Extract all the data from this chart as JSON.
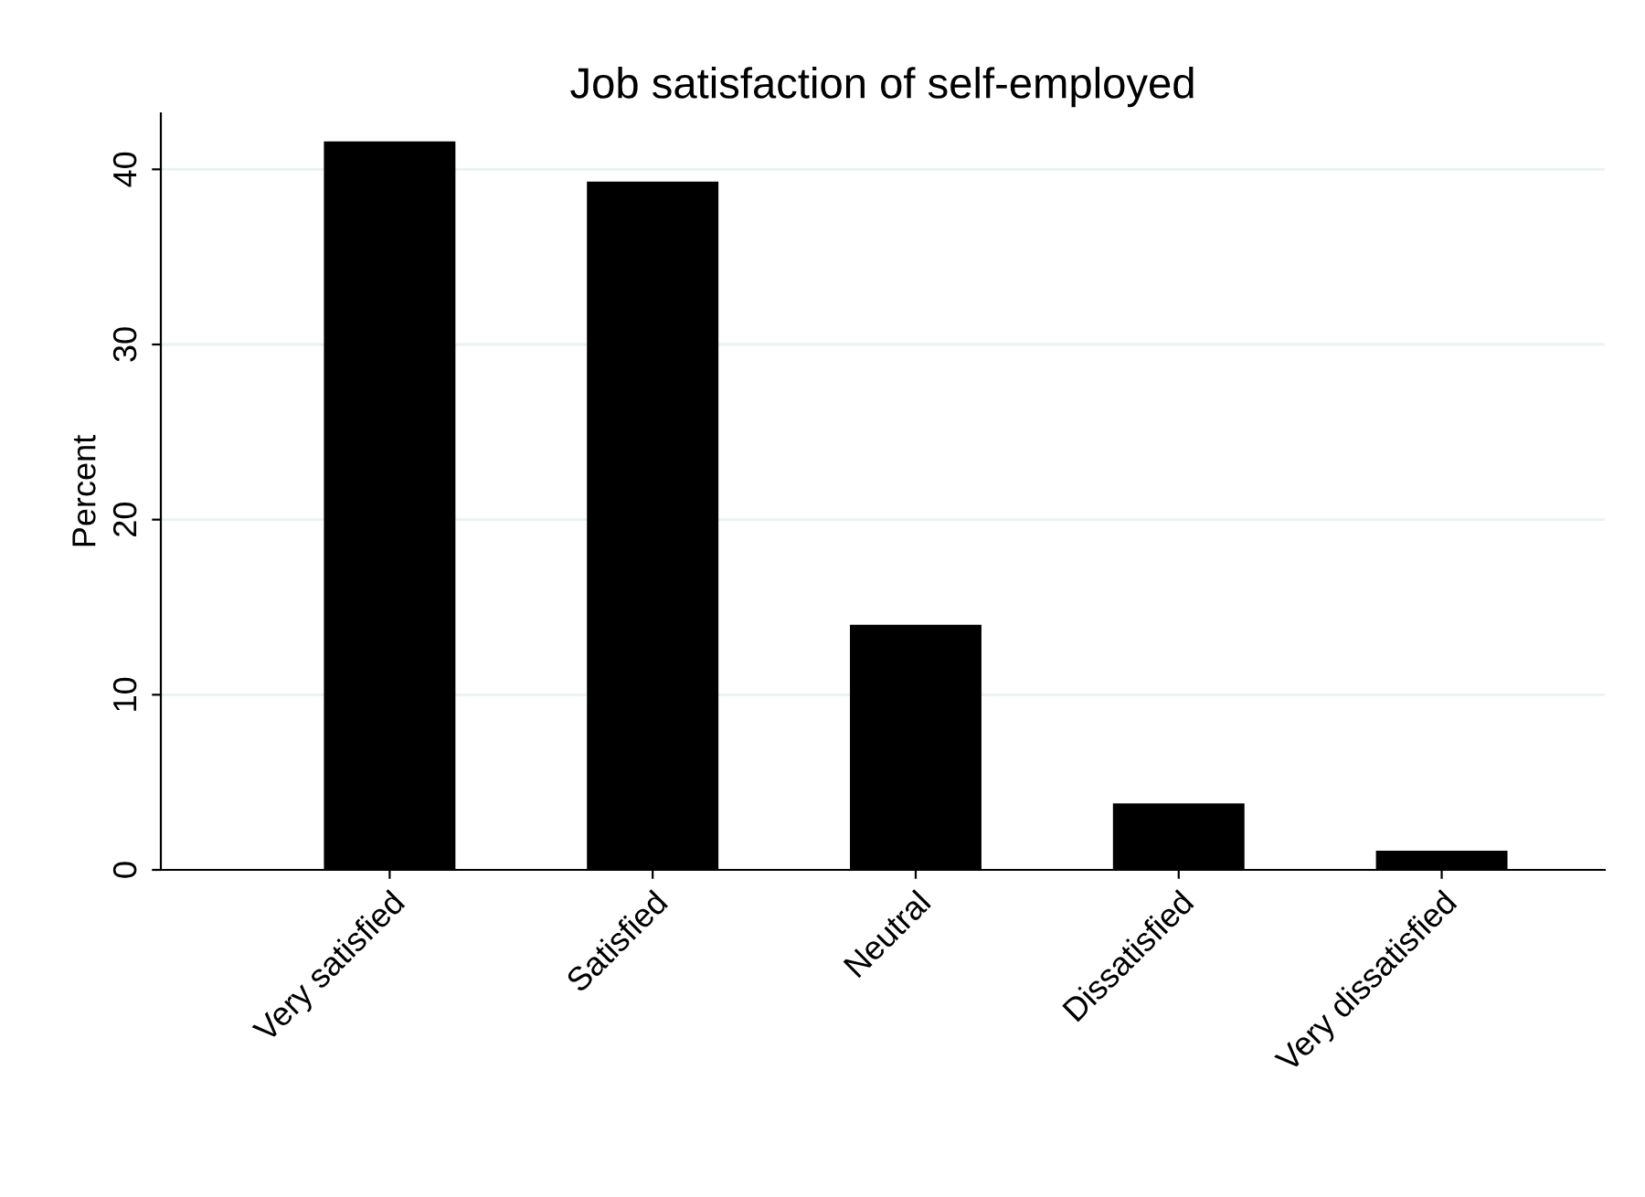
{
  "chart_data": {
    "type": "bar",
    "title": "Job satisfaction of self-employed",
    "ylabel": "Percent",
    "categories": [
      "Very satisfied",
      "Satisfied",
      "Neutral",
      "Dissatisfied",
      "Very dissatisfied"
    ],
    "values": [
      41.6,
      39.3,
      14.0,
      3.8,
      1.1
    ],
    "color": "#000000",
    "ylim": [
      0,
      43.2
    ],
    "yticks": [
      0,
      10,
      20,
      30,
      40
    ],
    "grid": "y",
    "legend": false
  }
}
